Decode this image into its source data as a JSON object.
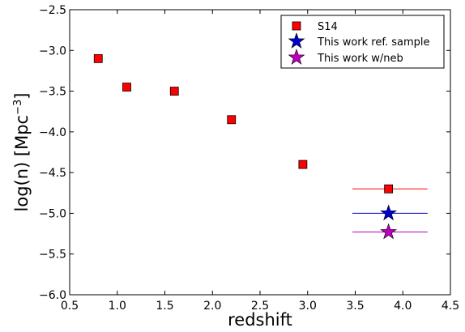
{
  "chart_data": {
    "type": "scatter",
    "xlabel": "redshift",
    "ylabel_main": "log(n) [Mpc",
    "ylabel_sup": "−3",
    "ylabel_close": "]",
    "xlim": [
      0.5,
      4.5
    ],
    "ylim": [
      -6.0,
      -2.5
    ],
    "grid": false,
    "legend_position": "upper-right",
    "x_ticks": [
      0.5,
      1.0,
      1.5,
      2.0,
      2.5,
      3.0,
      3.5,
      4.0,
      4.5
    ],
    "x_tick_labels": [
      "0.5",
      "1.0",
      "1.5",
      "2.0",
      "2.5",
      "3.0",
      "3.5",
      "4.0",
      "4.5"
    ],
    "y_ticks": [
      -2.5,
      -3.0,
      -3.5,
      -4.0,
      -4.5,
      -5.0,
      -5.5,
      -6.0
    ],
    "y_tick_labels": [
      "−2.5",
      "−3.0",
      "−3.5",
      "−4.0",
      "−4.5",
      "−5.0",
      "−5.5",
      "−6.0"
    ],
    "series": [
      {
        "name": "S14",
        "marker": "square",
        "color": "#ff0000",
        "points": [
          {
            "x": 0.8,
            "y": -3.1
          },
          {
            "x": 1.1,
            "y": -3.45
          },
          {
            "x": 1.6,
            "y": -3.5
          },
          {
            "x": 2.2,
            "y": -3.85
          },
          {
            "x": 2.95,
            "y": -4.4
          },
          {
            "x": 3.85,
            "y": -4.7,
            "xerr": [
              3.47,
              4.26
            ]
          }
        ]
      },
      {
        "name": "This work ref. sample",
        "marker": "star",
        "color": "#0000cc",
        "points": [
          {
            "x": 3.85,
            "y": -5.0,
            "xerr": [
              3.47,
              4.26
            ]
          }
        ]
      },
      {
        "name": "This work w/neb",
        "marker": "star",
        "color": "#bb00bb",
        "points": [
          {
            "x": 3.85,
            "y": -5.23,
            "xerr": [
              3.47,
              4.26
            ]
          }
        ]
      }
    ]
  }
}
